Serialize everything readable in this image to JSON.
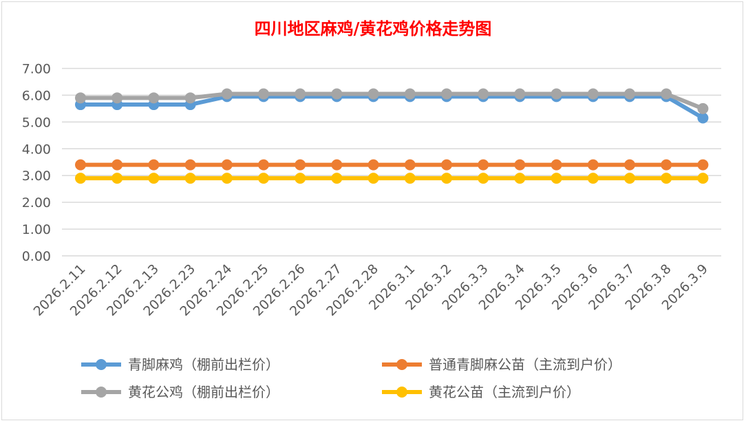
{
  "chart_data": {
    "type": "line",
    "title": "四川地区麻鸡/黄花鸡价格走势图",
    "categories": [
      "2026.2.11",
      "2026.2.12",
      "2026.2.13",
      "2026.2.23",
      "2026.2.24",
      "2026.2.25",
      "2026.2.26",
      "2026.2.27",
      "2026.2.28",
      "2026.3.1",
      "2026.3.2",
      "2026.3.3",
      "2026.3.4",
      "2026.3.5",
      "2026.3.6",
      "2026.3.7",
      "2026.3.8",
      "2026.3.9"
    ],
    "ylim": [
      0,
      7
    ],
    "yticks": [
      "0.00",
      "1.00",
      "2.00",
      "3.00",
      "4.00",
      "5.00",
      "6.00",
      "7.00"
    ],
    "grid": true,
    "legend_position": "bottom",
    "series": [
      {
        "name": "青脚麻鸡（棚前出栏价）",
        "color": "#5b9bd5",
        "values": [
          5.65,
          5.65,
          5.65,
          5.65,
          5.95,
          5.95,
          5.95,
          5.95,
          5.95,
          5.95,
          5.95,
          5.95,
          5.95,
          5.95,
          5.95,
          5.95,
          5.95,
          5.15
        ]
      },
      {
        "name": "普通青脚麻公苗（主流到户价）",
        "color": "#ed7d31",
        "values": [
          3.4,
          3.4,
          3.4,
          3.4,
          3.4,
          3.4,
          3.4,
          3.4,
          3.4,
          3.4,
          3.4,
          3.4,
          3.4,
          3.4,
          3.4,
          3.4,
          3.4,
          3.4
        ]
      },
      {
        "name": "黄花公鸡（棚前出栏价）",
        "color": "#a5a5a5",
        "values": [
          5.9,
          5.9,
          5.9,
          5.9,
          6.05,
          6.05,
          6.05,
          6.05,
          6.05,
          6.05,
          6.05,
          6.05,
          6.05,
          6.05,
          6.05,
          6.05,
          6.05,
          5.5
        ]
      },
      {
        "name": "黄花公苗（主流到户价）",
        "color": "#ffc000",
        "values": [
          2.9,
          2.9,
          2.9,
          2.9,
          2.9,
          2.9,
          2.9,
          2.9,
          2.9,
          2.9,
          2.9,
          2.9,
          2.9,
          2.9,
          2.9,
          2.9,
          2.9,
          2.9
        ]
      }
    ]
  }
}
